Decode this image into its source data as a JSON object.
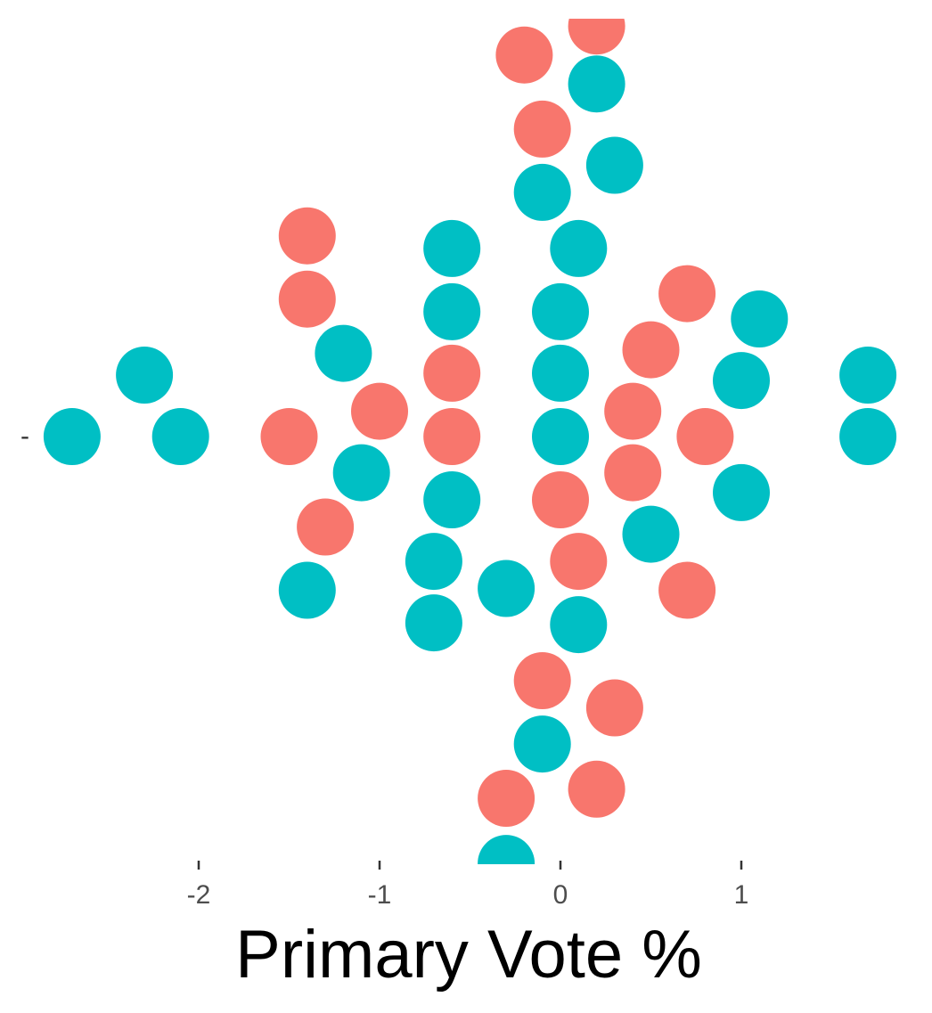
{
  "chart_data": {
    "type": "scatter",
    "subtype": "beeswarm",
    "title": "",
    "xlabel": "Primary Vote %",
    "ylabel": "",
    "y_tick_labels": [
      "-"
    ],
    "xlim": [
      -3.0,
      1.85
    ],
    "ylim": [
      -2.37,
      2.27
    ],
    "x_ticks": [
      -2,
      -1,
      0,
      1
    ],
    "grid": false,
    "legend": "none",
    "colors": {
      "red": "#F8766D",
      "teal": "#00BFC4"
    },
    "points": [
      {
        "x": -2.7,
        "y": 0.0,
        "group": "teal"
      },
      {
        "x": -2.3,
        "y": 0.34,
        "group": "teal"
      },
      {
        "x": -2.1,
        "y": 0.0,
        "group": "teal"
      },
      {
        "x": -1.5,
        "y": 0.0,
        "group": "red"
      },
      {
        "x": -1.4,
        "y": 1.11,
        "group": "red"
      },
      {
        "x": -1.4,
        "y": 0.76,
        "group": "red"
      },
      {
        "x": -1.4,
        "y": -0.85,
        "group": "teal"
      },
      {
        "x": -1.3,
        "y": -0.5,
        "group": "red"
      },
      {
        "x": -1.2,
        "y": 0.46,
        "group": "teal"
      },
      {
        "x": -1.1,
        "y": -0.2,
        "group": "teal"
      },
      {
        "x": -1.0,
        "y": 0.14,
        "group": "red"
      },
      {
        "x": -0.7,
        "y": -0.69,
        "group": "teal"
      },
      {
        "x": -0.7,
        "y": -1.03,
        "group": "teal"
      },
      {
        "x": -0.6,
        "y": 1.04,
        "group": "teal"
      },
      {
        "x": -0.6,
        "y": 0.69,
        "group": "teal"
      },
      {
        "x": -0.6,
        "y": 0.35,
        "group": "red"
      },
      {
        "x": -0.6,
        "y": 0.0,
        "group": "red"
      },
      {
        "x": -0.6,
        "y": -0.35,
        "group": "teal"
      },
      {
        "x": -0.3,
        "y": -0.84,
        "group": "teal"
      },
      {
        "x": -0.3,
        "y": -2.0,
        "group": "red"
      },
      {
        "x": -0.3,
        "y": -2.36,
        "group": "teal"
      },
      {
        "x": -0.2,
        "y": 2.11,
        "group": "red"
      },
      {
        "x": -0.1,
        "y": 1.7,
        "group": "red"
      },
      {
        "x": -0.1,
        "y": 1.35,
        "group": "teal"
      },
      {
        "x": -0.1,
        "y": -1.35,
        "group": "red"
      },
      {
        "x": -0.1,
        "y": -1.7,
        "group": "teal"
      },
      {
        "x": 0.0,
        "y": 0.69,
        "group": "teal"
      },
      {
        "x": 0.0,
        "y": 0.35,
        "group": "teal"
      },
      {
        "x": 0.0,
        "y": 0.0,
        "group": "teal"
      },
      {
        "x": 0.0,
        "y": -0.35,
        "group": "red"
      },
      {
        "x": 0.1,
        "y": 1.04,
        "group": "teal"
      },
      {
        "x": 0.1,
        "y": -0.69,
        "group": "red"
      },
      {
        "x": 0.1,
        "y": -1.04,
        "group": "teal"
      },
      {
        "x": 0.2,
        "y": 2.27,
        "group": "red"
      },
      {
        "x": 0.2,
        "y": 1.95,
        "group": "teal"
      },
      {
        "x": 0.2,
        "y": -1.95,
        "group": "red"
      },
      {
        "x": 0.3,
        "y": 1.5,
        "group": "teal"
      },
      {
        "x": 0.3,
        "y": -1.5,
        "group": "red"
      },
      {
        "x": 0.4,
        "y": 0.14,
        "group": "red"
      },
      {
        "x": 0.4,
        "y": -0.2,
        "group": "red"
      },
      {
        "x": 0.5,
        "y": 0.48,
        "group": "red"
      },
      {
        "x": 0.5,
        "y": -0.54,
        "group": "teal"
      },
      {
        "x": 0.7,
        "y": 0.79,
        "group": "red"
      },
      {
        "x": 0.7,
        "y": -0.85,
        "group": "red"
      },
      {
        "x": 0.8,
        "y": 0.0,
        "group": "red"
      },
      {
        "x": 1.0,
        "y": 0.31,
        "group": "teal"
      },
      {
        "x": 1.0,
        "y": -0.31,
        "group": "teal"
      },
      {
        "x": 1.1,
        "y": 0.65,
        "group": "teal"
      },
      {
        "x": 1.7,
        "y": 0.34,
        "group": "teal"
      },
      {
        "x": 1.7,
        "y": 0.0,
        "group": "teal"
      }
    ]
  }
}
